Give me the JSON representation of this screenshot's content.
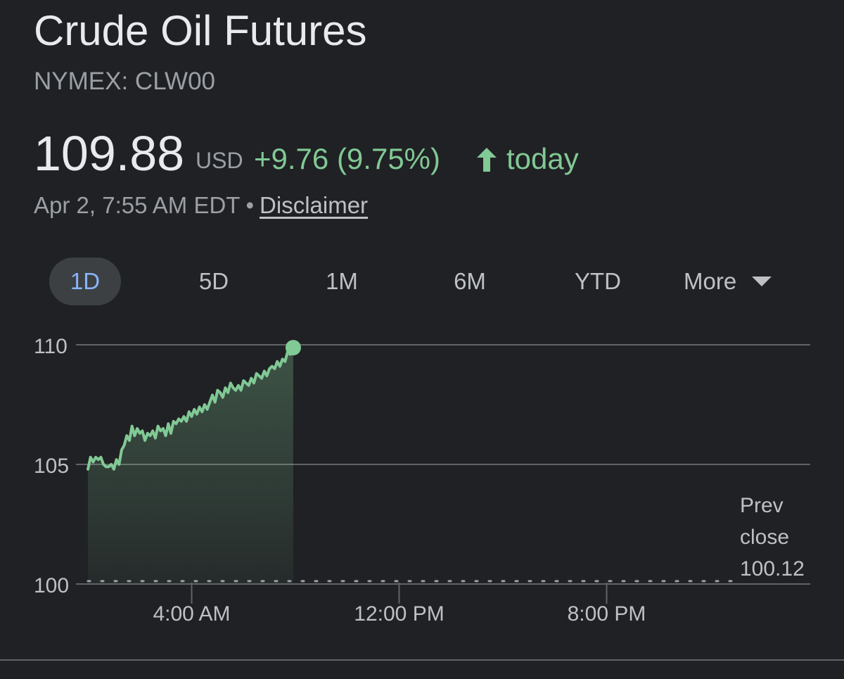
{
  "header": {
    "title": "Crude Oil Futures",
    "ticker": "NYMEX: CLW00"
  },
  "quote": {
    "price": "109.88",
    "currency": "USD",
    "change": "+9.76 (9.75%)",
    "direction_icon": "arrow-up-icon",
    "period": "today",
    "timestamp": "Apr 2, 7:55 AM EDT",
    "separator": "•",
    "disclaimer_label": "Disclaimer"
  },
  "range_tabs": {
    "items": [
      "1D",
      "5D",
      "1M",
      "6M",
      "YTD"
    ],
    "selected": "1D",
    "more_label": "More",
    "more_icon": "triangle-down-icon"
  },
  "colors": {
    "background": "#202124",
    "positive": "#81c995",
    "accent": "#8ab4f8",
    "muted_text": "#9aa0a6",
    "grid": "#5f6368"
  },
  "chart_data": {
    "type": "area",
    "x_range_hours": [
      0,
      24
    ],
    "ylim": [
      100,
      110
    ],
    "y_ticks": [
      {
        "value": 110,
        "label": "110"
      },
      {
        "value": 105,
        "label": "105"
      },
      {
        "value": 100,
        "label": "100"
      }
    ],
    "x_ticks": [
      {
        "hour": 4,
        "label": "4:00 AM"
      },
      {
        "hour": 12,
        "label": "12:00 PM"
      },
      {
        "hour": 20,
        "label": "8:00 PM"
      }
    ],
    "previous_close": {
      "value": 100.12,
      "label_lines": [
        "Prev",
        "close",
        "100.12"
      ]
    },
    "series": [
      {
        "x": [
          0.0,
          0.1,
          0.2,
          0.3,
          0.4,
          0.5,
          0.6,
          0.7,
          0.8,
          0.9,
          1.0,
          1.1,
          1.2,
          1.3,
          1.4,
          1.5,
          1.6,
          1.7,
          1.8,
          1.9,
          2.0,
          2.1,
          2.2,
          2.3,
          2.4,
          2.5,
          2.6,
          2.7,
          2.8,
          2.9,
          3.0,
          3.1,
          3.2,
          3.3,
          3.4,
          3.5,
          3.6,
          3.7,
          3.8,
          3.9,
          4.0,
          4.1,
          4.2,
          4.3,
          4.4,
          4.5,
          4.6,
          4.7,
          4.8,
          4.9,
          5.0,
          5.1,
          5.2,
          5.3,
          5.4,
          5.5,
          5.6,
          5.7,
          5.8,
          5.9,
          6.0,
          6.1,
          6.2,
          6.3,
          6.4,
          6.5,
          6.6,
          6.7,
          6.8,
          6.9,
          7.0,
          7.1,
          7.2,
          7.3,
          7.4,
          7.5,
          7.6,
          7.7,
          7.8,
          7.917
        ],
        "y": [
          104.8,
          105.3,
          105.1,
          105.3,
          105.2,
          105.3,
          105.0,
          104.9,
          104.9,
          105.0,
          104.8,
          105.2,
          105.0,
          105.6,
          105.8,
          106.2,
          106.0,
          106.6,
          106.2,
          106.5,
          106.3,
          106.4,
          106.0,
          106.3,
          106.2,
          106.4,
          106.1,
          106.6,
          106.4,
          106.5,
          106.2,
          106.7,
          106.3,
          106.8,
          106.7,
          106.9,
          106.8,
          107.0,
          106.8,
          107.2,
          107.0,
          107.3,
          107.1,
          107.4,
          107.2,
          107.5,
          107.3,
          107.6,
          107.9,
          107.6,
          108.1,
          108.0,
          107.8,
          108.2,
          108.0,
          108.4,
          108.2,
          108.1,
          108.3,
          108.1,
          108.5,
          108.4,
          108.3,
          108.6,
          108.4,
          108.8,
          108.7,
          108.6,
          108.9,
          108.7,
          109.0,
          109.1,
          109.0,
          109.3,
          109.1,
          109.4,
          109.3,
          109.7,
          109.6,
          109.9
        ]
      }
    ],
    "last_point": {
      "x": 7.917,
      "y": 109.88
    }
  }
}
